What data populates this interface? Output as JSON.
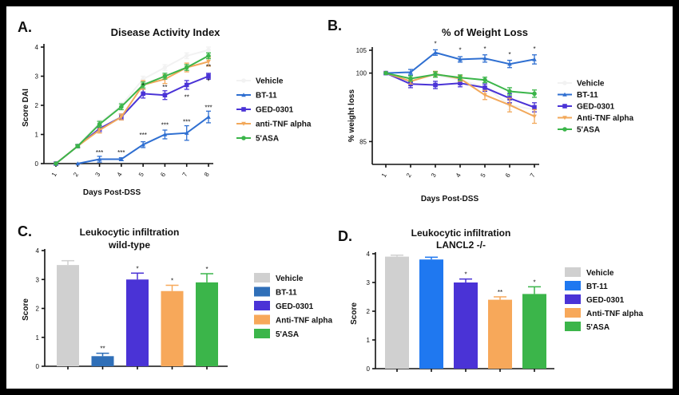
{
  "chart_data": [
    {
      "panel": "A.",
      "type": "line",
      "title": "Disease Activity Index",
      "xlabel": "Days Post-DSS",
      "ylabel": "Score DAI",
      "x": [
        1,
        2,
        3,
        4,
        5,
        6,
        7,
        8
      ],
      "ylim": [
        0,
        4
      ],
      "yticks": [
        0,
        1,
        2,
        3,
        4
      ],
      "legend_position": "right",
      "series": [
        {
          "name": "Vehicle",
          "color": "#f2f2f2",
          "marker": "circle",
          "values": [
            0,
            0.6,
            1.4,
            2.0,
            2.9,
            3.3,
            3.7,
            3.9
          ],
          "errors": [
            0,
            0.05,
            0.1,
            0.1,
            0.1,
            0.1,
            0.1,
            0.1
          ]
        },
        {
          "name": "BT-11",
          "color": "#2f6fd1",
          "marker": "triangle",
          "values": [
            null,
            0,
            0.15,
            0.15,
            0.65,
            1.0,
            1.05,
            1.6
          ],
          "errors": [
            0,
            0,
            0.1,
            0.05,
            0.1,
            0.15,
            0.25,
            0.2
          ]
        },
        {
          "name": "GED-0301",
          "color": "#4a33d6",
          "marker": "square",
          "values": [
            0,
            0.6,
            1.2,
            1.6,
            2.4,
            2.35,
            2.7,
            3.0
          ],
          "errors": [
            0,
            0.05,
            0.1,
            0.1,
            0.15,
            0.15,
            0.15,
            0.1
          ]
        },
        {
          "name": "anti-TNF alpha",
          "color": "#f2a85a",
          "marker": "triangle-down",
          "values": [
            0,
            0.6,
            1.15,
            1.6,
            2.7,
            2.9,
            3.3,
            3.5
          ],
          "errors": [
            0,
            0.05,
            0.1,
            0.1,
            0.15,
            0.15,
            0.15,
            0.15
          ]
        },
        {
          "name": "5'ASA",
          "color": "#3bb54a",
          "marker": "circle",
          "values": [
            0,
            0.6,
            1.35,
            1.95,
            2.7,
            3.0,
            3.3,
            3.7
          ],
          "errors": [
            0,
            0.05,
            0.1,
            0.1,
            0.1,
            0.1,
            0.1,
            0.1
          ]
        }
      ],
      "annotations": [
        {
          "x": 3,
          "y": 0.3,
          "text": "***"
        },
        {
          "x": 4,
          "y": 0.3,
          "text": "***"
        },
        {
          "x": 5,
          "y": 0.9,
          "text": "***"
        },
        {
          "x": 5,
          "y": 2.6,
          "text": "*"
        },
        {
          "x": 6,
          "y": 1.25,
          "text": "***"
        },
        {
          "x": 6,
          "y": 2.55,
          "text": "**"
        },
        {
          "x": 7,
          "y": 1.35,
          "text": "***"
        },
        {
          "x": 7,
          "y": 2.2,
          "text": "**"
        },
        {
          "x": 8,
          "y": 1.85,
          "text": "***"
        },
        {
          "x": 8,
          "y": 3.25,
          "text": "**"
        },
        {
          "x": 8,
          "y": 2.75,
          "text": "*"
        }
      ]
    },
    {
      "panel": "B.",
      "type": "line",
      "title": "% of Weight Loss",
      "xlabel": "Days Post-DSS",
      "ylabel": "% weight loss",
      "x": [
        1,
        2,
        3,
        4,
        5,
        6,
        7
      ],
      "ylim": [
        80,
        105
      ],
      "yticks": [
        85,
        100,
        105
      ],
      "legend_position": "right",
      "series": [
        {
          "name": "Vehicle",
          "color": "#f2f2f2",
          "marker": "circle",
          "values": [
            100,
            98.5,
            99.5,
            98.5,
            97,
            93,
            92
          ],
          "errors": [
            0,
            0.5,
            0.5,
            0.5,
            0.8,
            1,
            1
          ]
        },
        {
          "name": "BT-11",
          "color": "#2f6fd1",
          "marker": "triangle",
          "values": [
            100,
            100.2,
            104.5,
            103,
            103.2,
            102,
            103
          ],
          "errors": [
            0,
            0.6,
            0.6,
            0.6,
            0.8,
            0.8,
            1
          ]
        },
        {
          "name": "GED-0301",
          "color": "#4a33d6",
          "marker": "square",
          "values": [
            100,
            97.6,
            97.4,
            97.8,
            96.8,
            94.5,
            92.5
          ],
          "errors": [
            0,
            0.8,
            0.8,
            0.8,
            0.8,
            1,
            1
          ]
        },
        {
          "name": "Anti-TNF alpha",
          "color": "#f2a85a",
          "marker": "triangle-down",
          "values": [
            100,
            98.2,
            99.8,
            98.8,
            95.2,
            93,
            90.5
          ],
          "errors": [
            0,
            0.6,
            0.6,
            0.6,
            1,
            1.5,
            1.5
          ]
        },
        {
          "name": "5'ASA",
          "color": "#3bb54a",
          "marker": "circle",
          "values": [
            100,
            98.8,
            99.7,
            99,
            98.5,
            96,
            95.5
          ],
          "errors": [
            0,
            0.6,
            0.6,
            0.6,
            0.6,
            0.8,
            0.8
          ]
        }
      ],
      "annotations": [
        {
          "x": 3,
          "y": 106,
          "text": "*"
        },
        {
          "x": 4,
          "y": 104.6,
          "text": "*"
        },
        {
          "x": 5,
          "y": 104.8,
          "text": "*"
        },
        {
          "x": 6,
          "y": 103.6,
          "text": "*"
        },
        {
          "x": 7,
          "y": 104.8,
          "text": "*"
        }
      ]
    },
    {
      "panel": "C.",
      "type": "bar",
      "title": "Leukocytic infiltration",
      "subtitle": "wild-type",
      "xlabel": "",
      "ylabel": "Score",
      "categories": [
        "Vehicle",
        "BT-11",
        "GED-0301",
        "Anti-TNF alpha",
        "5'ASA"
      ],
      "values": [
        3.5,
        0.35,
        3.0,
        2.6,
        2.9
      ],
      "errors": [
        0.15,
        0.1,
        0.22,
        0.2,
        0.3
      ],
      "colors": [
        "#d0d0d0",
        "#2f6fb8",
        "#4a33d6",
        "#f7a85a",
        "#3bb54a"
      ],
      "significance": [
        "",
        "**",
        "*",
        "*",
        "*"
      ],
      "ylim": [
        0,
        4
      ],
      "yticks": [
        0,
        1,
        2,
        3,
        4
      ],
      "legend_position": "right"
    },
    {
      "panel": "D.",
      "type": "bar",
      "title": "Leukocytic infiltration",
      "subtitle": "LANCL2 -/-",
      "xlabel": "",
      "ylabel": "Score",
      "categories": [
        "Vehicle",
        "BT-11",
        "GED-0301",
        "Anti-TNF alpha",
        "5'ASA"
      ],
      "values": [
        3.9,
        3.8,
        3.0,
        2.4,
        2.6
      ],
      "errors": [
        0.05,
        0.08,
        0.12,
        0.1,
        0.25
      ],
      "colors": [
        "#d0d0d0",
        "#1f78f0",
        "#4a33d6",
        "#f7a85a",
        "#3bb54a"
      ],
      "significance": [
        "",
        "",
        "*",
        "**",
        "*"
      ],
      "ylim": [
        0,
        4
      ],
      "yticks": [
        0,
        1,
        2,
        3,
        4
      ],
      "legend_position": "right"
    }
  ]
}
